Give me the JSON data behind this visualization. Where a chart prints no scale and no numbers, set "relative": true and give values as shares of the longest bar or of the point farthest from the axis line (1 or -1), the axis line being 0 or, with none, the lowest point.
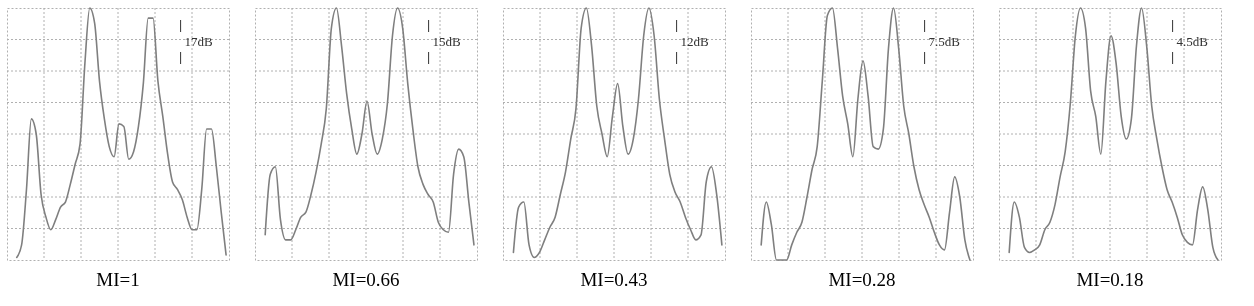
{
  "chart_data": [
    {
      "type": "line",
      "relative": true,
      "grid": true,
      "tick_labels": false,
      "color": "#7f7f7f",
      "xlabel": "MI=1",
      "annotations": [
        "17dB"
      ],
      "categories": [
        null,
        null,
        null,
        null,
        null,
        null,
        null,
        null,
        null,
        null,
        null,
        null,
        null,
        null,
        null,
        null,
        null,
        null,
        null,
        null,
        null,
        null,
        null,
        null,
        null,
        null,
        null,
        null,
        null,
        null,
        null,
        null,
        null,
        null,
        null,
        null,
        null,
        null,
        null,
        null,
        null,
        null,
        null,
        null
      ],
      "values": [
        0.01,
        0.06,
        0.28,
        0.56,
        0.5,
        0.26,
        0.17,
        0.12,
        0.16,
        0.21,
        0.23,
        0.3,
        0.38,
        0.46,
        0.78,
        1.0,
        0.94,
        0.71,
        0.56,
        0.45,
        0.41,
        0.54,
        0.53,
        0.4,
        0.43,
        0.53,
        0.7,
        0.96,
        0.96,
        0.71,
        0.57,
        0.42,
        0.31,
        0.28,
        0.24,
        0.17,
        0.12,
        0.12,
        0.28,
        0.52,
        0.52,
        0.37,
        0.19,
        0.02
      ]
    },
    {
      "type": "line",
      "relative": true,
      "grid": true,
      "tick_labels": false,
      "color": "#7f7f7f",
      "xlabel": "MI=0.66",
      "annotations": [
        "15dB"
      ],
      "categories": [
        null,
        null,
        null,
        null,
        null,
        null,
        null,
        null,
        null,
        null,
        null,
        null,
        null,
        null,
        null,
        null,
        null,
        null,
        null,
        null,
        null,
        null,
        null,
        null,
        null,
        null,
        null,
        null,
        null,
        null,
        null,
        null,
        null,
        null,
        null,
        null,
        null,
        null,
        null,
        null,
        null,
        null
      ],
      "values": [
        0.1,
        0.34,
        0.37,
        0.16,
        0.08,
        0.08,
        0.12,
        0.17,
        0.19,
        0.26,
        0.35,
        0.46,
        0.6,
        0.92,
        1.0,
        0.85,
        0.66,
        0.52,
        0.42,
        0.5,
        0.63,
        0.5,
        0.42,
        0.48,
        0.62,
        0.89,
        1.0,
        0.92,
        0.7,
        0.52,
        0.37,
        0.3,
        0.26,
        0.23,
        0.15,
        0.12,
        0.11,
        0.34,
        0.44,
        0.41,
        0.23,
        0.06
      ]
    },
    {
      "type": "line",
      "relative": true,
      "grid": true,
      "tick_labels": false,
      "color": "#7f7f7f",
      "xlabel": "MI=0.43",
      "annotations": [
        "12dB"
      ],
      "categories": [
        null,
        null,
        null,
        null,
        null,
        null,
        null,
        null,
        null,
        null,
        null,
        null,
        null,
        null,
        null,
        null,
        null,
        null,
        null,
        null,
        null,
        null,
        null,
        null,
        null,
        null,
        null,
        null,
        null,
        null,
        null,
        null,
        null,
        null,
        null,
        null,
        null,
        null,
        null,
        null,
        null
      ],
      "values": [
        0.03,
        0.21,
        0.23,
        0.06,
        0.01,
        0.03,
        0.08,
        0.13,
        0.17,
        0.26,
        0.35,
        0.48,
        0.6,
        0.92,
        1.0,
        0.85,
        0.61,
        0.5,
        0.41,
        0.57,
        0.7,
        0.53,
        0.42,
        0.48,
        0.64,
        0.89,
        1.0,
        0.89,
        0.64,
        0.48,
        0.34,
        0.27,
        0.23,
        0.17,
        0.12,
        0.08,
        0.1,
        0.31,
        0.37,
        0.26,
        0.06
      ]
    },
    {
      "type": "line",
      "relative": true,
      "grid": true,
      "tick_labels": false,
      "color": "#7f7f7f",
      "xlabel": "MI=0.28",
      "annotations": [
        "7.5dB"
      ],
      "categories": [
        null,
        null,
        null,
        null,
        null,
        null,
        null,
        null,
        null,
        null,
        null,
        null,
        null,
        null,
        null,
        null,
        null,
        null,
        null,
        null,
        null,
        null,
        null,
        null,
        null,
        null,
        null,
        null,
        null,
        null,
        null,
        null,
        null,
        null,
        null,
        null,
        null,
        null,
        null,
        null,
        null,
        null
      ],
      "values": [
        0.06,
        0.23,
        0.14,
        0.0,
        0.0,
        0.0,
        0.06,
        0.11,
        0.15,
        0.25,
        0.36,
        0.45,
        0.71,
        0.97,
        1.0,
        0.84,
        0.65,
        0.54,
        0.41,
        0.64,
        0.79,
        0.65,
        0.45,
        0.44,
        0.52,
        0.84,
        1.0,
        0.84,
        0.61,
        0.5,
        0.37,
        0.28,
        0.22,
        0.17,
        0.11,
        0.06,
        0.04,
        0.19,
        0.33,
        0.25,
        0.08,
        0.0
      ]
    },
    {
      "type": "line",
      "relative": true,
      "grid": true,
      "tick_labels": false,
      "color": "#7f7f7f",
      "xlabel": "MI=0.18",
      "annotations": [
        "4.5dB"
      ],
      "categories": [
        null,
        null,
        null,
        null,
        null,
        null,
        null,
        null,
        null,
        null,
        null,
        null,
        null,
        null,
        null,
        null,
        null,
        null,
        null,
        null,
        null,
        null,
        null,
        null,
        null,
        null,
        null,
        null,
        null,
        null,
        null,
        null,
        null,
        null,
        null,
        null,
        null,
        null,
        null,
        null,
        null,
        null
      ],
      "values": [
        0.03,
        0.23,
        0.17,
        0.05,
        0.03,
        0.04,
        0.06,
        0.12,
        0.15,
        0.22,
        0.33,
        0.43,
        0.62,
        0.89,
        1.0,
        0.92,
        0.67,
        0.57,
        0.42,
        0.71,
        0.89,
        0.78,
        0.57,
        0.48,
        0.56,
        0.85,
        1.0,
        0.85,
        0.61,
        0.48,
        0.37,
        0.28,
        0.23,
        0.17,
        0.1,
        0.07,
        0.06,
        0.2,
        0.29,
        0.2,
        0.05,
        0.0
      ]
    }
  ]
}
